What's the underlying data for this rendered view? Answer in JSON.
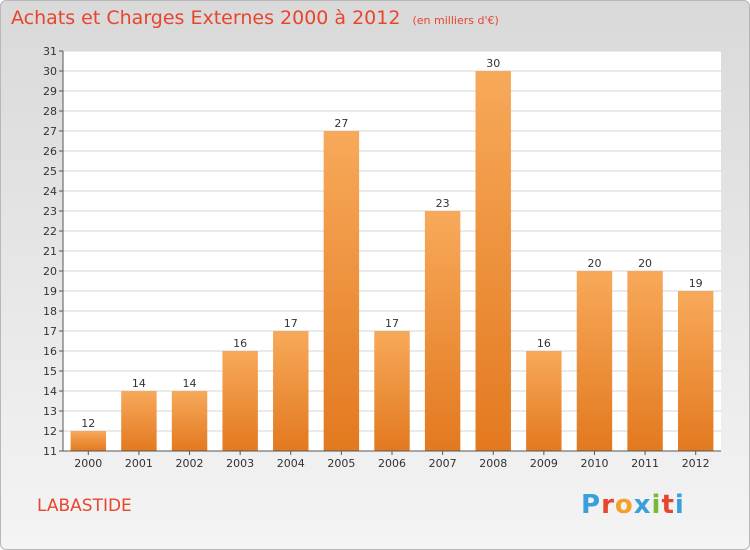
{
  "title": "Achats et Charges Externes 2000 à 2012",
  "subtitle": "(en milliers d'€)",
  "town": "LABASTIDE",
  "logo": "Proxiti",
  "colors": {
    "bar_light": "#f7a95a",
    "bar_dark": "#e3791f",
    "title": "#e8452e",
    "grid": "#d4d4d4"
  },
  "chart_data": {
    "type": "bar",
    "title": "Achats et Charges Externes 2000 à 2012",
    "subtitle": "(en milliers d'€)",
    "categories": [
      "2000",
      "2001",
      "2002",
      "2003",
      "2004",
      "2005",
      "2006",
      "2007",
      "2008",
      "2009",
      "2010",
      "2011",
      "2012"
    ],
    "values": [
      12,
      14,
      14,
      16,
      17,
      27,
      17,
      23,
      30,
      16,
      20,
      20,
      19
    ],
    "ylim": [
      11,
      31
    ],
    "yticks": [
      11,
      12,
      13,
      14,
      15,
      16,
      17,
      18,
      19,
      20,
      21,
      22,
      23,
      24,
      25,
      26,
      27,
      28,
      29,
      30,
      31
    ],
    "grid": true,
    "data_labels": true
  }
}
